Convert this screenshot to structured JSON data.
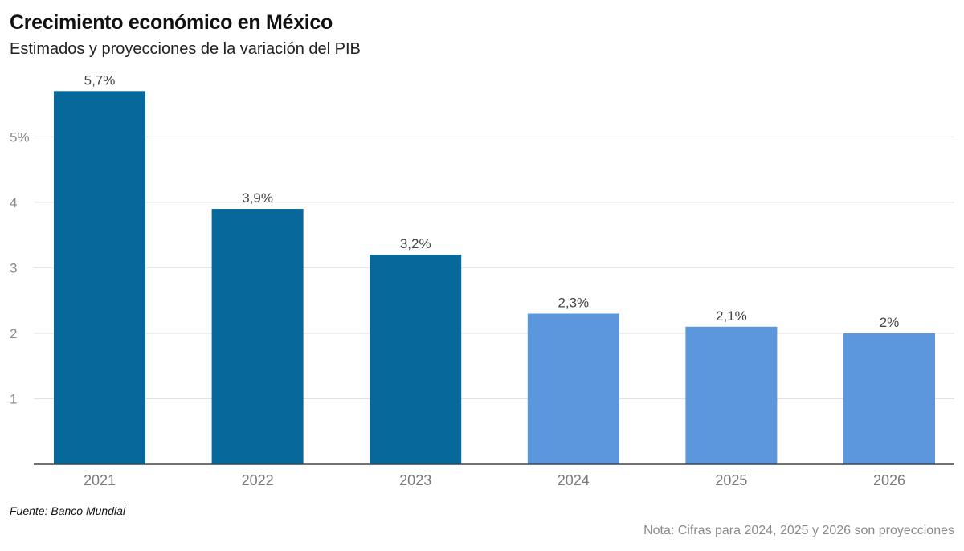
{
  "chart_data": {
    "type": "bar",
    "title": "Crecimiento económico en México",
    "subtitle": "Estimados y proyecciones de la variación del PIB",
    "categories": [
      "2021",
      "2022",
      "2023",
      "2024",
      "2025",
      "2026"
    ],
    "values": [
      5.7,
      3.9,
      3.2,
      2.3,
      2.1,
      2.0
    ],
    "data_labels": [
      "5,7%",
      "3,9%",
      "3,2%",
      "2,3%",
      "2,1%",
      "2%"
    ],
    "projection": [
      false,
      false,
      false,
      true,
      true,
      true
    ],
    "yticks": [
      1,
      2,
      3,
      4,
      5
    ],
    "ytick_labels": [
      "1",
      "2",
      "3",
      "4",
      "5%"
    ],
    "ylim": [
      0,
      5.9
    ],
    "xlabel": "",
    "ylabel": "",
    "grid": true,
    "legend": "none"
  },
  "colors": {
    "estimate": "#07689c",
    "projection": "#5c96dc",
    "grid": "#e2e2e2",
    "axis": "#444444"
  },
  "footer": {
    "source": "Fuente: Banco Mundial",
    "note": "Nota: Cifras para 2024, 2025 y 2026 son proyecciones"
  }
}
